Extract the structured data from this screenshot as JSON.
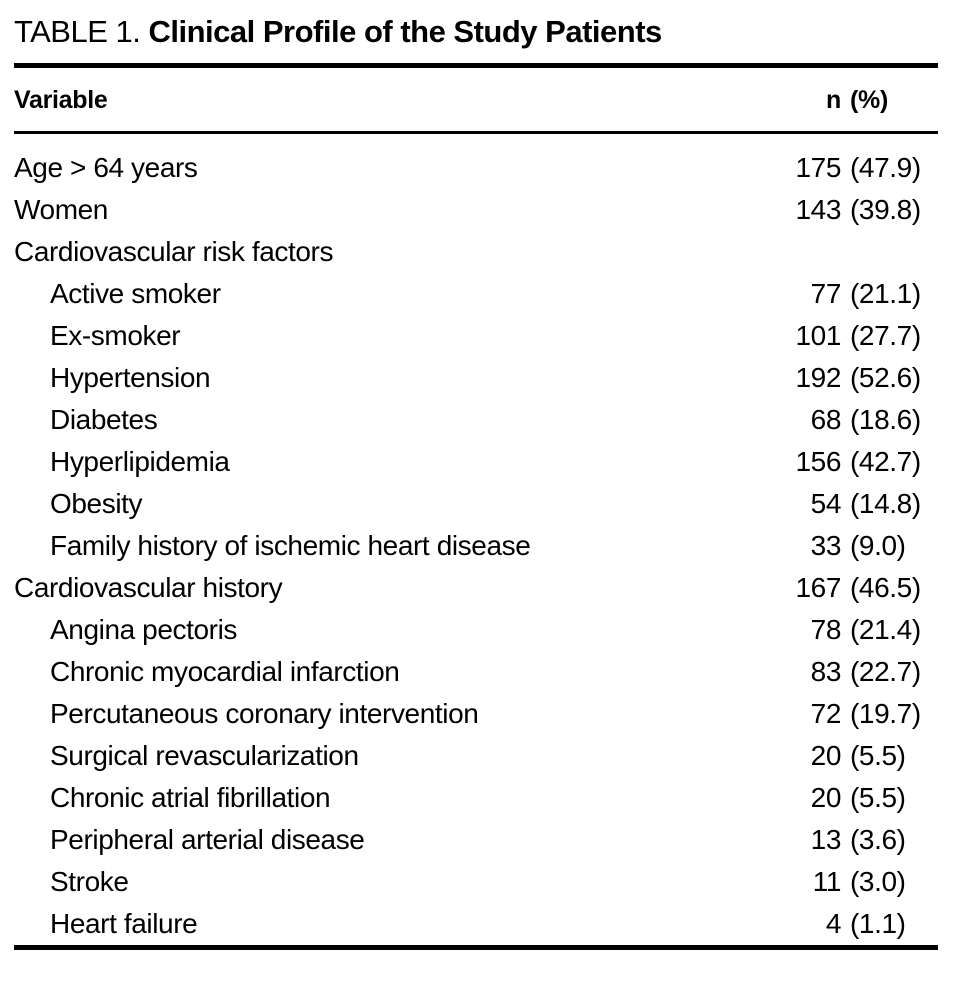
{
  "title": {
    "label": "TABLE 1.",
    "caption": "Clinical Profile of the Study Patients"
  },
  "header": {
    "variable": "Variable",
    "n": "n",
    "pct": "(%)"
  },
  "table": {
    "rows": [
      {
        "label": "Age > 64 years",
        "indent": 0,
        "n": "175",
        "pct": "(47.9)"
      },
      {
        "label": "Women",
        "indent": 0,
        "n": "143",
        "pct": "(39.8)"
      },
      {
        "label": "Cardiovascular risk factors",
        "indent": 0,
        "n": "",
        "pct": ""
      },
      {
        "label": "Active smoker",
        "indent": 1,
        "n": "77",
        "pct": "(21.1)"
      },
      {
        "label": "Ex-smoker",
        "indent": 1,
        "n": "101",
        "pct": "(27.7)"
      },
      {
        "label": "Hypertension",
        "indent": 1,
        "n": "192",
        "pct": "(52.6)"
      },
      {
        "label": "Diabetes",
        "indent": 1,
        "n": "68",
        "pct": "(18.6)"
      },
      {
        "label": "Hyperlipidemia",
        "indent": 1,
        "n": "156",
        "pct": "(42.7)"
      },
      {
        "label": "Obesity",
        "indent": 1,
        "n": "54",
        "pct": "(14.8)"
      },
      {
        "label": "Family history of ischemic heart disease",
        "indent": 1,
        "n": "33",
        "pct": "(9.0)"
      },
      {
        "label": "Cardiovascular history",
        "indent": 0,
        "n": "167",
        "pct": "(46.5)"
      },
      {
        "label": "Angina pectoris",
        "indent": 1,
        "n": "78",
        "pct": "(21.4)"
      },
      {
        "label": "Chronic myocardial infarction",
        "indent": 1,
        "n": "83",
        "pct": "(22.7)"
      },
      {
        "label": "Percutaneous coronary intervention",
        "indent": 1,
        "n": "72",
        "pct": "(19.7)"
      },
      {
        "label": "Surgical revascularization",
        "indent": 1,
        "n": "20",
        "pct": "(5.5)"
      },
      {
        "label": "Chronic atrial fibrillation",
        "indent": 1,
        "n": "20",
        "pct": "(5.5)"
      },
      {
        "label": "Peripheral arterial disease",
        "indent": 1,
        "n": "13",
        "pct": "(3.6)"
      },
      {
        "label": "Stroke",
        "indent": 1,
        "n": "11",
        "pct": "(3.0)"
      },
      {
        "label": "Heart failure",
        "indent": 1,
        "n": "4",
        "pct": "(1.1)"
      }
    ]
  }
}
